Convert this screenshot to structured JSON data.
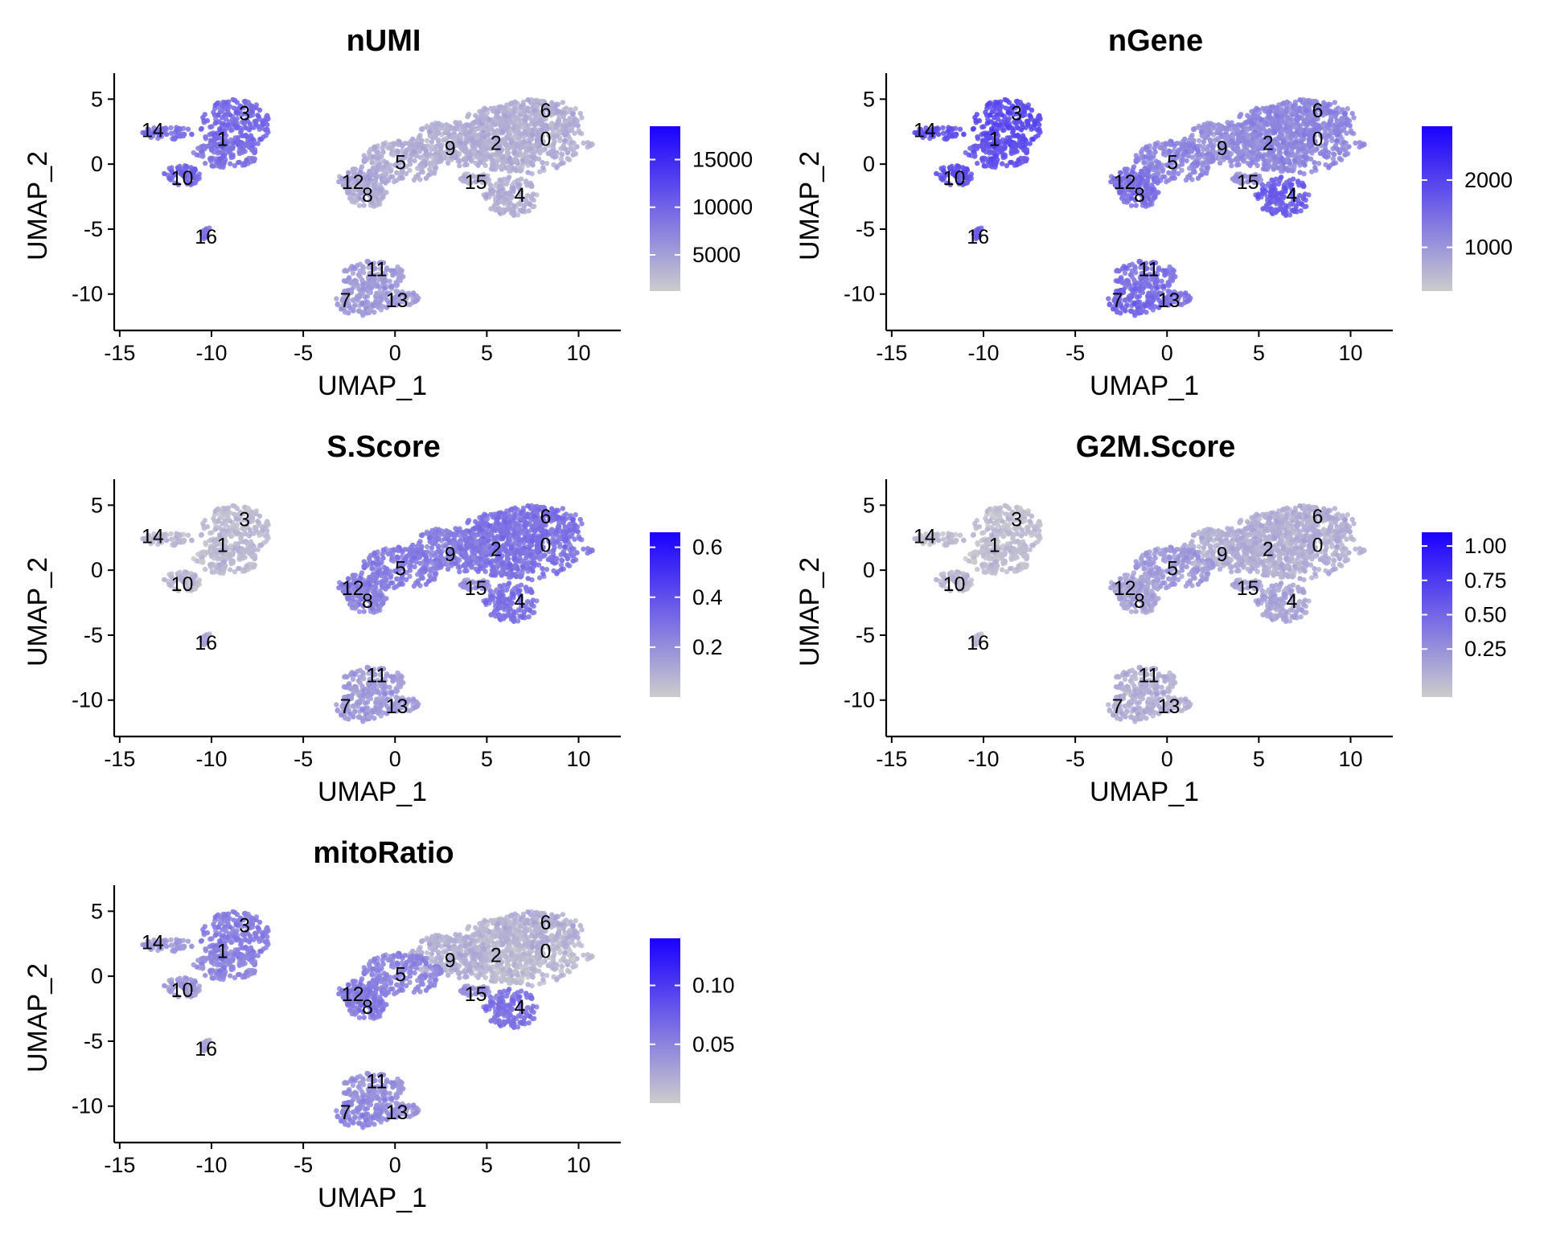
{
  "chart_data": [
    {
      "type": "scatter",
      "title": "nUMI",
      "xlabel": "UMAP_1",
      "ylabel": "UMAP_2",
      "xticks": [
        "-15",
        "-10",
        "-5",
        "0",
        "5",
        "10"
      ],
      "yticks": [
        "5",
        "0",
        "-5",
        "-10"
      ],
      "xlim": [
        -15.3,
        12.3
      ],
      "ylim": [
        -12.8,
        7.0
      ],
      "colorbar": {
        "ticks": [
          "15000",
          "10000",
          "5000"
        ],
        "tick_values": [
          15000,
          10000,
          5000
        ],
        "range": [
          1200,
          18500
        ]
      },
      "cluster_labels": [
        "0",
        "1",
        "2",
        "3",
        "4",
        "5",
        "6",
        "7",
        "8",
        "9",
        "10",
        "11",
        "12",
        "13",
        "14",
        "15",
        "16"
      ],
      "intensity": [
        0.15,
        0.45,
        0.15,
        0.5,
        0.15,
        0.15,
        0.15,
        0.25,
        0.15,
        0.15,
        0.5,
        0.25,
        0.2,
        0.25,
        0.45,
        0.15,
        0.45
      ]
    },
    {
      "type": "scatter",
      "title": "nGene",
      "xlabel": "UMAP_1",
      "ylabel": "UMAP_2",
      "xticks": [
        "-15",
        "-10",
        "-5",
        "0",
        "5",
        "10"
      ],
      "yticks": [
        "5",
        "0",
        "-5",
        "-10"
      ],
      "xlim": [
        -15.3,
        12.3
      ],
      "ylim": [
        -12.8,
        7.0
      ],
      "colorbar": {
        "ticks": [
          "2000",
          "1000"
        ],
        "tick_values": [
          2000,
          1000
        ],
        "range": [
          350,
          2800
        ]
      },
      "cluster_labels": [
        "0",
        "1",
        "2",
        "3",
        "4",
        "5",
        "6",
        "7",
        "8",
        "9",
        "10",
        "11",
        "12",
        "13",
        "14",
        "15",
        "16"
      ],
      "intensity": [
        0.35,
        0.6,
        0.35,
        0.65,
        0.55,
        0.35,
        0.35,
        0.5,
        0.45,
        0.3,
        0.6,
        0.45,
        0.45,
        0.45,
        0.6,
        0.3,
        0.55
      ]
    },
    {
      "type": "scatter",
      "title": "S.Score",
      "xlabel": "UMAP_1",
      "ylabel": "UMAP_2",
      "xticks": [
        "-15",
        "-10",
        "-5",
        "0",
        "5",
        "10"
      ],
      "yticks": [
        "5",
        "0",
        "-5",
        "-10"
      ],
      "xlim": [
        -15.3,
        12.3
      ],
      "ylim": [
        -12.8,
        7.0
      ],
      "colorbar": {
        "ticks": [
          "0.6",
          "0.4",
          "0.2"
        ],
        "tick_values": [
          0.6,
          0.4,
          0.2
        ],
        "range": [
          0.0,
          0.66
        ]
      },
      "cluster_labels": [
        "0",
        "1",
        "2",
        "3",
        "4",
        "5",
        "6",
        "7",
        "8",
        "9",
        "10",
        "11",
        "12",
        "13",
        "14",
        "15",
        "16"
      ],
      "intensity": [
        0.45,
        0.1,
        0.45,
        0.1,
        0.45,
        0.4,
        0.45,
        0.25,
        0.35,
        0.4,
        0.1,
        0.25,
        0.4,
        0.25,
        0.1,
        0.3,
        0.2
      ]
    },
    {
      "type": "scatter",
      "title": "G2M.Score",
      "xlabel": "UMAP_1",
      "ylabel": "UMAP_2",
      "xticks": [
        "-15",
        "-10",
        "-5",
        "0",
        "5",
        "10"
      ],
      "yticks": [
        "5",
        "0",
        "-5",
        "-10"
      ],
      "xlim": [
        -15.3,
        12.3
      ],
      "ylim": [
        -12.8,
        7.0
      ],
      "colorbar": {
        "ticks": [
          "1.00",
          "0.75",
          "0.50",
          "0.25"
        ],
        "tick_values": [
          1.0,
          0.75,
          0.5,
          0.25
        ],
        "range": [
          -0.1,
          1.1
        ]
      },
      "cluster_labels": [
        "0",
        "1",
        "2",
        "3",
        "4",
        "5",
        "6",
        "7",
        "8",
        "9",
        "10",
        "11",
        "12",
        "13",
        "14",
        "15",
        "16"
      ],
      "intensity": [
        0.15,
        0.08,
        0.15,
        0.08,
        0.2,
        0.25,
        0.15,
        0.15,
        0.2,
        0.15,
        0.1,
        0.15,
        0.2,
        0.15,
        0.08,
        0.2,
        0.1
      ]
    },
    {
      "type": "scatter",
      "title": "mitoRatio",
      "xlabel": "UMAP_1",
      "ylabel": "UMAP_2",
      "xticks": [
        "-15",
        "-10",
        "-5",
        "0",
        "5",
        "10"
      ],
      "yticks": [
        "5",
        "0",
        "-5",
        "-10"
      ],
      "xlim": [
        -15.3,
        12.3
      ],
      "ylim": [
        -12.8,
        7.0
      ],
      "colorbar": {
        "ticks": [
          "0.10",
          "0.05"
        ],
        "tick_values": [
          0.1,
          0.05
        ],
        "range": [
          0.0,
          0.14
        ]
      },
      "cluster_labels": [
        "0",
        "1",
        "2",
        "3",
        "4",
        "5",
        "6",
        "7",
        "8",
        "9",
        "10",
        "11",
        "12",
        "13",
        "14",
        "15",
        "16"
      ],
      "intensity": [
        0.1,
        0.35,
        0.1,
        0.4,
        0.45,
        0.35,
        0.15,
        0.35,
        0.4,
        0.15,
        0.25,
        0.3,
        0.4,
        0.3,
        0.25,
        0.3,
        0.2
      ]
    }
  ],
  "colors": {
    "low": "#cccccc",
    "high": "#1a00ff",
    "axis": "#000000"
  }
}
